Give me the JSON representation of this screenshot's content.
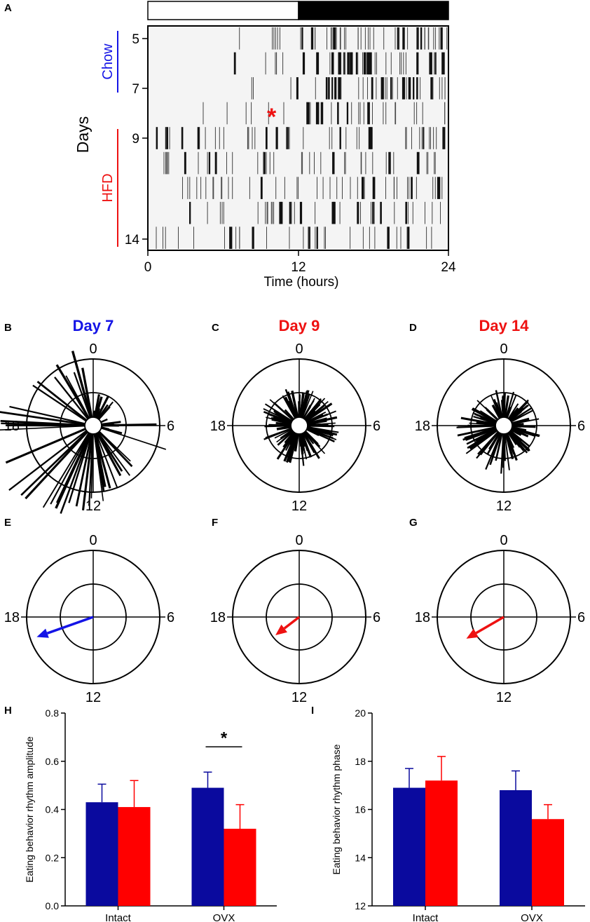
{
  "colors": {
    "chow": "#1414e6",
    "hfd": "#ee1111",
    "bar_chow": "#0a0a9e",
    "bar_hfd": "#ff0000",
    "raster_bg": "#f4f4f4"
  },
  "panels": {
    "a": "A",
    "b": "B",
    "c": "C",
    "d": "D",
    "e": "E",
    "f": "F",
    "g": "G",
    "h": "H",
    "i": "I"
  },
  "actogram": {
    "ylabel": "Days",
    "chow_label": "Chow",
    "hfd_label": "HFD",
    "xlabel": "Time (hours)",
    "x_ticks": [
      "0",
      "12",
      "24"
    ],
    "y_ticks": [
      "5",
      "7",
      "9",
      "14"
    ],
    "marker": "*",
    "light_phase_hours": [
      0,
      12
    ],
    "dark_phase_hours": [
      12,
      24
    ]
  },
  "rose_plots": [
    {
      "title": "Day 7",
      "diet": "chow",
      "top": "0",
      "right": "6",
      "bottom": "12",
      "left": "18"
    },
    {
      "title": "Day 9",
      "diet": "hfd",
      "top": "0",
      "right": "6",
      "bottom": "12",
      "left": "18"
    },
    {
      "title": "Day 14",
      "diet": "hfd",
      "top": "0",
      "right": "6",
      "bottom": "12",
      "left": "18"
    }
  ],
  "vector_plots": [
    {
      "diet": "chow",
      "phase_hours": 16.7,
      "amplitude": 0.9,
      "top": "0",
      "right": "6",
      "bottom": "12",
      "left": "18"
    },
    {
      "diet": "hfd",
      "phase_hours": 15.5,
      "amplitude": 0.45,
      "top": "0",
      "right": "6",
      "bottom": "12",
      "left": "18"
    },
    {
      "diet": "hfd",
      "phase_hours": 16.0,
      "amplitude": 0.65,
      "top": "0",
      "right": "6",
      "bottom": "12",
      "left": "18"
    }
  ],
  "chart_data": [
    {
      "type": "bar",
      "panel": "H",
      "categories": [
        "Intact",
        "OVX"
      ],
      "series": [
        {
          "values": [
            0.43,
            0.49
          ],
          "errors": [
            0.075,
            0.065
          ]
        },
        {
          "values": [
            0.41,
            0.32
          ],
          "errors": [
            0.11,
            0.1
          ]
        }
      ],
      "ylabel": "Eating behavior rhythm amplitude",
      "ylim": [
        0.0,
        0.8
      ],
      "yticks": [
        "0.0",
        "0.2",
        "0.4",
        "0.6",
        "0.8"
      ],
      "significance": "*"
    },
    {
      "type": "bar",
      "panel": "I",
      "categories": [
        "Intact",
        "OVX"
      ],
      "series": [
        {
          "values": [
            16.9,
            16.8
          ],
          "errors": [
            0.8,
            0.8
          ]
        },
        {
          "values": [
            17.2,
            15.6
          ],
          "errors": [
            1.0,
            0.6
          ]
        }
      ],
      "ylabel": "Eating behavior rhythm phase",
      "ylim": [
        12,
        20
      ],
      "yticks": [
        "12",
        "14",
        "16",
        "18",
        "20"
      ]
    }
  ]
}
